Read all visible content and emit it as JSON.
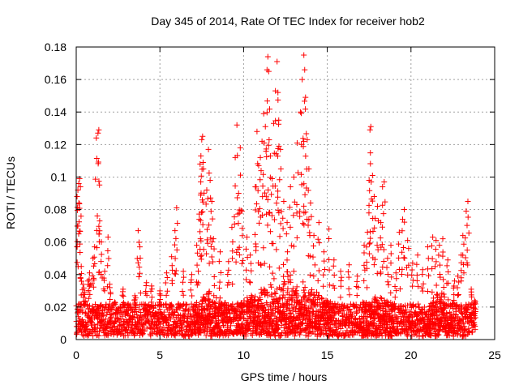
{
  "chart_data": {
    "type": "scatter",
    "title": "Day 345 of 2014, Rate Of TEC Index for receiver hob2",
    "xlabel": "GPS time / hours",
    "ylabel": "ROTI / TECUs",
    "xlim": [
      0,
      25
    ],
    "ylim": [
      0,
      0.18
    ],
    "x_ticks": [
      "0",
      "5",
      "10",
      "15",
      "20",
      "25"
    ],
    "y_ticks": [
      "0",
      "0.02",
      "0.04",
      "0.06",
      "0.08",
      "0.1",
      "0.12",
      "0.14",
      "0.16",
      "0.18"
    ],
    "grid": true,
    "marker": "+",
    "color": "#ff0000",
    "series": [
      {
        "points": [
          [
            0.05,
            0.088
          ],
          [
            0.1,
            0.092
          ],
          [
            0.15,
            0.096
          ],
          [
            0.2,
            0.099
          ],
          [
            0.25,
            0.094
          ],
          [
            0.3,
            0.045
          ],
          [
            0.4,
            0.034
          ],
          [
            0.5,
            0.029
          ],
          [
            0.7,
            0.036
          ],
          [
            0.8,
            0.041
          ],
          [
            1.0,
            0.05
          ],
          [
            1.1,
            0.057
          ],
          [
            1.2,
            0.124
          ],
          [
            1.3,
            0.127
          ],
          [
            1.35,
            0.129
          ],
          [
            1.4,
            0.073
          ],
          [
            1.5,
            0.06
          ],
          [
            1.7,
            0.042
          ],
          [
            1.9,
            0.063
          ],
          [
            2.0,
            0.034
          ],
          [
            2.3,
            0.023
          ],
          [
            2.8,
            0.031
          ],
          [
            3.1,
            0.022
          ],
          [
            3.5,
            0.027
          ],
          [
            3.7,
            0.067
          ],
          [
            3.8,
            0.057
          ],
          [
            4.2,
            0.035
          ],
          [
            4.5,
            0.033
          ],
          [
            5.0,
            0.03
          ],
          [
            5.4,
            0.041
          ],
          [
            5.7,
            0.051
          ],
          [
            5.9,
            0.067
          ],
          [
            6.0,
            0.081
          ],
          [
            6.4,
            0.042
          ],
          [
            6.9,
            0.04
          ],
          [
            7.2,
            0.058
          ],
          [
            7.35,
            0.074
          ],
          [
            7.4,
            0.108
          ],
          [
            7.45,
            0.113
          ],
          [
            7.5,
            0.123
          ],
          [
            7.55,
            0.125
          ],
          [
            7.6,
            0.105
          ],
          [
            7.8,
            0.092
          ],
          [
            7.9,
            0.117
          ],
          [
            8.0,
            0.098
          ],
          [
            8.1,
            0.085
          ],
          [
            8.2,
            0.062
          ],
          [
            8.6,
            0.054
          ],
          [
            9.1,
            0.048
          ],
          [
            9.3,
            0.069
          ],
          [
            9.5,
            0.112
          ],
          [
            9.6,
            0.132
          ],
          [
            9.7,
            0.09
          ],
          [
            9.8,
            0.118
          ],
          [
            9.9,
            0.079
          ],
          [
            10.2,
            0.063
          ],
          [
            10.4,
            0.052
          ],
          [
            10.7,
            0.094
          ],
          [
            10.8,
            0.128
          ],
          [
            10.9,
            0.107
          ],
          [
            11.0,
            0.112
          ],
          [
            11.1,
            0.122
          ],
          [
            11.2,
            0.139
          ],
          [
            11.3,
            0.131
          ],
          [
            11.4,
            0.166
          ],
          [
            11.45,
            0.174
          ],
          [
            11.5,
            0.165
          ],
          [
            11.6,
            0.113
          ],
          [
            11.7,
            0.099
          ],
          [
            11.8,
            0.133
          ],
          [
            11.9,
            0.153
          ],
          [
            12.0,
            0.171
          ],
          [
            12.05,
            0.152
          ],
          [
            12.1,
            0.135
          ],
          [
            12.2,
            0.117
          ],
          [
            12.4,
            0.085
          ],
          [
            12.6,
            0.072
          ],
          [
            12.8,
            0.094
          ],
          [
            13.0,
            0.1
          ],
          [
            13.2,
            0.121
          ],
          [
            13.4,
            0.14
          ],
          [
            13.5,
            0.16
          ],
          [
            13.6,
            0.175
          ],
          [
            13.65,
            0.166
          ],
          [
            13.7,
            0.149
          ],
          [
            13.8,
            0.123
          ],
          [
            13.9,
            0.105
          ],
          [
            14.0,
            0.084
          ],
          [
            14.2,
            0.064
          ],
          [
            14.5,
            0.072
          ],
          [
            14.8,
            0.054
          ],
          [
            15.1,
            0.068
          ],
          [
            15.4,
            0.049
          ],
          [
            15.8,
            0.042
          ],
          [
            16.3,
            0.046
          ],
          [
            16.8,
            0.039
          ],
          [
            17.2,
            0.058
          ],
          [
            17.4,
            0.066
          ],
          [
            17.5,
            0.098
          ],
          [
            17.55,
            0.129
          ],
          [
            17.6,
            0.131
          ],
          [
            17.7,
            0.101
          ],
          [
            17.8,
            0.088
          ],
          [
            18.0,
            0.082
          ],
          [
            18.2,
            0.072
          ],
          [
            18.3,
            0.094
          ],
          [
            18.4,
            0.097
          ],
          [
            18.6,
            0.05
          ],
          [
            18.8,
            0.058
          ],
          [
            19.1,
            0.041
          ],
          [
            19.3,
            0.066
          ],
          [
            19.5,
            0.074
          ],
          [
            19.6,
            0.08
          ],
          [
            19.8,
            0.061
          ],
          [
            20.1,
            0.047
          ],
          [
            20.4,
            0.052
          ],
          [
            20.7,
            0.043
          ],
          [
            21.0,
            0.057
          ],
          [
            21.3,
            0.063
          ],
          [
            21.5,
            0.061
          ],
          [
            21.7,
            0.058
          ],
          [
            21.9,
            0.062
          ],
          [
            22.2,
            0.049
          ],
          [
            22.6,
            0.036
          ],
          [
            22.8,
            0.039
          ],
          [
            23.0,
            0.052
          ],
          [
            23.1,
            0.064
          ],
          [
            23.3,
            0.079
          ],
          [
            23.4,
            0.085
          ],
          [
            23.6,
            0.031
          ],
          [
            23.8,
            0.024
          ]
        ]
      }
    ],
    "baseline": {
      "x_range": [
        0,
        23.9
      ],
      "y_min": 0.002,
      "y_max": 0.022,
      "enhanced_segments": [
        [
          7.0,
          9.0,
          0.032
        ],
        [
          9.5,
          15.5,
          0.045
        ],
        [
          17.0,
          19.0,
          0.03
        ],
        [
          21.0,
          22.5,
          0.034
        ]
      ]
    }
  }
}
